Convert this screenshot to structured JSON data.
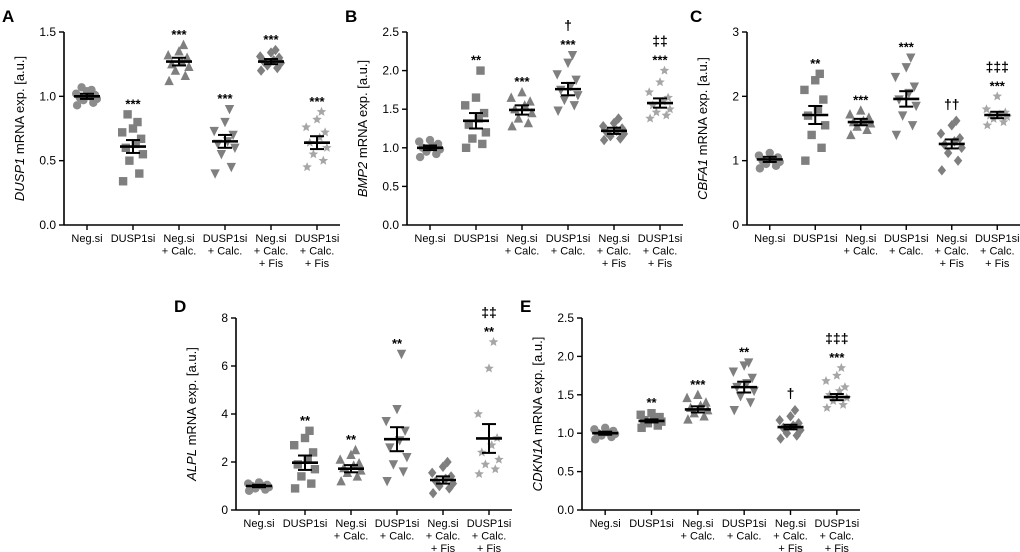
{
  "colors": {
    "axis": "#000000",
    "neg": "#8c8c8c",
    "dark": "#7f7f7f",
    "light": "#a6a6a6"
  },
  "chart_data": [
    {
      "panel": "A",
      "type": "scatter",
      "gene": "DUSP1",
      "ylabel_suffix": " mRNA exp. [a.u.]",
      "ylim": [
        0,
        1.5
      ],
      "yticks": [
        "0.0",
        "0.5",
        "1.0",
        "1.5"
      ],
      "categories": [
        [
          "Neg.si"
        ],
        [
          "DUSP1si"
        ],
        [
          "Neg.si",
          "+ Calc."
        ],
        [
          "DUSP1si",
          "+ Calc."
        ],
        [
          "Neg.si",
          "+ Calc.",
          "+ Fis"
        ],
        [
          "DUSP1si",
          "+ Calc.",
          "+ Fis"
        ]
      ],
      "marker": [
        "circle",
        "square",
        "triangle",
        "tri-down",
        "diamond",
        "star"
      ],
      "color": [
        "neg",
        "dark",
        "dark",
        "dark",
        "dark",
        "light"
      ],
      "means": [
        1.0,
        0.61,
        1.27,
        0.65,
        1.27,
        0.64
      ],
      "sems": [
        0.02,
        0.05,
        0.03,
        0.05,
        0.02,
        0.05
      ],
      "points": [
        [
          0.93,
          0.95,
          0.97,
          0.98,
          0.99,
          1.0,
          1.01,
          1.02,
          1.04,
          1.05,
          1.07
        ],
        [
          0.34,
          0.4,
          0.5,
          0.55,
          0.6,
          0.63,
          0.67,
          0.72,
          0.75,
          0.8,
          0.86
        ],
        [
          1.12,
          1.16,
          1.2,
          1.23,
          1.25,
          1.27,
          1.3,
          1.32,
          1.35,
          1.4
        ],
        [
          0.4,
          0.45,
          0.55,
          0.6,
          0.63,
          0.65,
          0.7,
          0.73,
          0.8,
          0.9
        ],
        [
          1.2,
          1.22,
          1.24,
          1.26,
          1.27,
          1.28,
          1.3,
          1.31,
          1.34,
          1.36
        ],
        [
          0.45,
          0.5,
          0.55,
          0.6,
          0.64,
          0.68,
          0.72,
          0.76,
          0.82,
          0.88
        ]
      ],
      "sig": [
        [],
        [
          "***"
        ],
        [
          "***"
        ],
        [
          "***"
        ],
        [
          "***"
        ],
        [
          "***"
        ]
      ]
    },
    {
      "panel": "B",
      "type": "scatter",
      "gene": "BMP2",
      "ylabel_suffix": " mRNA exp. [a.u.]",
      "ylim": [
        0,
        2.5
      ],
      "yticks": [
        "0.0",
        "0.5",
        "1.0",
        "1.5",
        "2.0",
        "2.5"
      ],
      "categories": [
        [
          "Neg.si"
        ],
        [
          "DUSP1si"
        ],
        [
          "Neg.si",
          "+ Calc."
        ],
        [
          "DUSP1si",
          "+ Calc."
        ],
        [
          "Neg.si",
          "+ Calc.",
          "+ Fis"
        ],
        [
          "DUSP1si",
          "+ Calc.",
          "+ Fis"
        ]
      ],
      "marker": [
        "circle",
        "square",
        "triangle",
        "tri-down",
        "diamond",
        "star"
      ],
      "color": [
        "neg",
        "dark",
        "dark",
        "dark",
        "dark",
        "light"
      ],
      "means": [
        1.0,
        1.35,
        1.49,
        1.76,
        1.22,
        1.58
      ],
      "sems": [
        0.03,
        0.1,
        0.06,
        0.08,
        0.04,
        0.06
      ],
      "points": [
        [
          0.88,
          0.92,
          0.95,
          0.98,
          1.0,
          1.02,
          1.05,
          1.08,
          1.1
        ],
        [
          1.0,
          1.05,
          1.12,
          1.2,
          1.3,
          1.38,
          1.45,
          1.55,
          1.65,
          2.0
        ],
        [
          1.28,
          1.32,
          1.38,
          1.45,
          1.5,
          1.55,
          1.6,
          1.65,
          1.72
        ],
        [
          1.48,
          1.55,
          1.62,
          1.68,
          1.75,
          1.8,
          1.88,
          1.95,
          2.1,
          2.2
        ],
        [
          1.1,
          1.12,
          1.15,
          1.18,
          1.2,
          1.22,
          1.25,
          1.28,
          1.32,
          1.38
        ],
        [
          1.38,
          1.42,
          1.46,
          1.5,
          1.55,
          1.6,
          1.65,
          1.72,
          1.85,
          2.0
        ]
      ],
      "sig": [
        [],
        [
          "**"
        ],
        [
          "***"
        ],
        [
          "†",
          "***"
        ],
        [],
        [
          "‡‡",
          "***"
        ]
      ]
    },
    {
      "panel": "C",
      "type": "scatter",
      "gene": "CBFA1",
      "ylabel_suffix": " mRNA exp. [a.u.]",
      "ylim": [
        0,
        3
      ],
      "yticks": [
        "0",
        "1",
        "2",
        "3"
      ],
      "categories": [
        [
          "Neg.si"
        ],
        [
          "DUSP1si"
        ],
        [
          "Neg.si",
          "+ Calc."
        ],
        [
          "DUSP1si",
          "+ Calc."
        ],
        [
          "Neg.si",
          "+ Calc.",
          "+ Fis"
        ],
        [
          "DUSP1si",
          "+ Calc.",
          "+ Fis"
        ]
      ],
      "marker": [
        "circle",
        "square",
        "triangle",
        "tri-down",
        "diamond",
        "star"
      ],
      "color": [
        "neg",
        "dark",
        "dark",
        "dark",
        "dark",
        "light"
      ],
      "means": [
        1.02,
        1.71,
        1.6,
        1.96,
        1.26,
        1.71
      ],
      "sems": [
        0.04,
        0.14,
        0.05,
        0.12,
        0.07,
        0.05
      ],
      "points": [
        [
          0.88,
          0.92,
          0.95,
          0.98,
          1.0,
          1.02,
          1.05,
          1.08,
          1.12
        ],
        [
          1.0,
          1.2,
          1.4,
          1.55,
          1.7,
          1.8,
          1.95,
          2.1,
          2.25,
          2.35
        ],
        [
          1.4,
          1.48,
          1.53,
          1.58,
          1.6,
          1.62,
          1.67,
          1.72,
          1.78
        ],
        [
          1.4,
          1.55,
          1.7,
          1.85,
          1.95,
          2.05,
          2.15,
          2.3,
          2.45,
          2.6
        ],
        [
          0.85,
          1.0,
          1.12,
          1.2,
          1.25,
          1.3,
          1.35,
          1.42,
          1.55,
          1.62
        ],
        [
          1.55,
          1.6,
          1.65,
          1.68,
          1.7,
          1.72,
          1.75,
          1.8,
          2.0
        ]
      ],
      "sig": [
        [],
        [
          "**"
        ],
        [
          "***"
        ],
        [
          "***"
        ],
        [
          "††"
        ],
        [
          "‡‡‡",
          "***"
        ]
      ]
    },
    {
      "panel": "D",
      "type": "scatter",
      "gene": "ALPL",
      "ylabel_suffix": " mRNA exp. [a.u.]",
      "ylim": [
        0,
        8
      ],
      "yticks": [
        "0",
        "2",
        "4",
        "6",
        "8"
      ],
      "categories": [
        [
          "Neg.si"
        ],
        [
          "DUSP1si"
        ],
        [
          "Neg.si",
          "+ Calc."
        ],
        [
          "DUSP1si",
          "+ Calc."
        ],
        [
          "Neg.si",
          "+ Calc.",
          "+ Fis"
        ],
        [
          "DUSP1si",
          "+ Calc.",
          "+ Fis"
        ]
      ],
      "marker": [
        "circle",
        "square",
        "triangle",
        "tri-down",
        "diamond",
        "star"
      ],
      "color": [
        "neg",
        "dark",
        "dark",
        "dark",
        "dark",
        "light"
      ],
      "means": [
        1.0,
        1.97,
        1.72,
        2.95,
        1.25,
        2.98
      ],
      "sems": [
        0.05,
        0.3,
        0.15,
        0.5,
        0.15,
        0.6
      ],
      "points": [
        [
          0.8,
          0.85,
          0.9,
          0.95,
          1.0,
          1.02,
          1.05,
          1.1,
          1.15
        ],
        [
          0.9,
          1.1,
          1.4,
          1.7,
          1.9,
          2.1,
          2.4,
          2.7,
          3.0,
          3.3
        ],
        [
          1.2,
          1.4,
          1.55,
          1.65,
          1.75,
          1.85,
          1.95,
          2.1,
          2.3,
          2.5
        ],
        [
          1.2,
          1.6,
          1.9,
          2.2,
          2.6,
          2.9,
          3.3,
          3.7,
          4.2,
          6.5
        ],
        [
          0.7,
          0.9,
          1.0,
          1.1,
          1.2,
          1.3,
          1.4,
          1.55,
          1.8,
          2.0
        ],
        [
          1.5,
          1.7,
          1.9,
          2.1,
          2.4,
          2.7,
          3.0,
          4.0,
          5.9,
          7.0
        ]
      ],
      "sig": [
        [],
        [
          "**"
        ],
        [
          "**"
        ],
        [
          "**"
        ],
        [],
        [
          "‡‡",
          "**"
        ]
      ]
    },
    {
      "panel": "E",
      "type": "scatter",
      "gene": "CDKN1A",
      "ylabel_suffix": "  mRNA exp. [a.u.]",
      "ylim": [
        0,
        2.5
      ],
      "yticks": [
        "0.0",
        "0.5",
        "1.0",
        "1.5",
        "2.0",
        "2.5"
      ],
      "categories": [
        [
          "Neg.si"
        ],
        [
          "DUSP1si"
        ],
        [
          "Neg.si",
          "+ Calc."
        ],
        [
          "DUSP1si",
          "+ Calc."
        ],
        [
          "Neg.si",
          "+ Calc.",
          "+ Fis"
        ],
        [
          "DUSP1si",
          "+ Calc.",
          "+ Fis"
        ]
      ],
      "marker": [
        "circle",
        "square",
        "triangle",
        "tri-down",
        "diamond",
        "star"
      ],
      "color": [
        "neg",
        "dark",
        "dark",
        "dark",
        "dark",
        "light"
      ],
      "means": [
        1.0,
        1.16,
        1.31,
        1.6,
        1.08,
        1.47
      ],
      "sems": [
        0.02,
        0.02,
        0.04,
        0.07,
        0.03,
        0.04
      ],
      "points": [
        [
          0.92,
          0.95,
          0.97,
          0.99,
          1.0,
          1.01,
          1.03,
          1.05,
          1.07
        ],
        [
          1.07,
          1.1,
          1.13,
          1.15,
          1.17,
          1.19,
          1.21,
          1.24,
          1.26
        ],
        [
          1.18,
          1.22,
          1.26,
          1.3,
          1.33,
          1.36,
          1.4,
          1.46,
          1.5
        ],
        [
          1.3,
          1.4,
          1.48,
          1.55,
          1.6,
          1.65,
          1.72,
          1.8,
          1.88,
          1.92
        ],
        [
          0.93,
          0.97,
          1.0,
          1.04,
          1.07,
          1.1,
          1.13,
          1.17,
          1.22,
          1.3
        ],
        [
          1.33,
          1.37,
          1.42,
          1.46,
          1.5,
          1.55,
          1.6,
          1.68,
          1.75,
          1.85
        ]
      ],
      "sig": [
        [],
        [
          "**"
        ],
        [
          "***"
        ],
        [
          "**"
        ],
        [
          "†"
        ],
        [
          "‡‡‡",
          "***"
        ]
      ]
    }
  ]
}
